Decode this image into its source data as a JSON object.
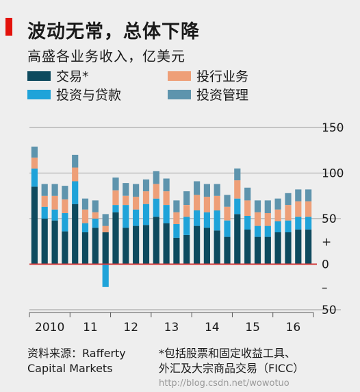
{
  "title": "波动无常，总体下降",
  "subtitle": "高盛各业务收入，亿美元",
  "colors": {
    "accent": "#e3120b",
    "zero_line": "#d33a3a",
    "background": "#eeeeee"
  },
  "footer": {
    "source_line1": "资料来源：Rafferty",
    "source_line2": "Capital Markets",
    "footnote_line1": "*包括股票和固定收益工具、",
    "footnote_line2_text": "外汇及大宗商品交易（FICC）",
    "watermark": "http://blog.csdn.net/wowotuo"
  },
  "chart_data": {
    "type": "bar",
    "stacked": true,
    "ylim": [
      -50,
      150
    ],
    "y_ticks": [
      "150",
      "100",
      "50",
      "+",
      "0",
      "–",
      "50"
    ],
    "x_labels": [
      "2010",
      "11",
      "12",
      "13",
      "14",
      "15",
      "16"
    ],
    "legend": [
      {
        "name": "交易*",
        "color": "#0e4a5e"
      },
      {
        "name": "投行业务",
        "color": "#ee9f78"
      },
      {
        "name": "投资与贷款",
        "color": "#1fa3d9"
      },
      {
        "name": "投资管理",
        "color": "#5e94ad"
      }
    ],
    "grid": true,
    "legend_position": "top-left",
    "periods": [
      "2010 Q1",
      "2010 Q2",
      "2010 Q3",
      "2010 Q4",
      "2011 Q1",
      "2011 Q2",
      "2011 Q3",
      "2011 Q4",
      "2012 Q1",
      "2012 Q2",
      "2012 Q3",
      "2012 Q4",
      "2013 Q1",
      "2013 Q2",
      "2013 Q3",
      "2013 Q4",
      "2014 Q1",
      "2014 Q2",
      "2014 Q3",
      "2014 Q4",
      "2015 Q1",
      "2015 Q2",
      "2015 Q3",
      "2015 Q4",
      "2016 Q1",
      "2016 Q2",
      "2016 Q3",
      "2016 Q4"
    ],
    "series": [
      {
        "name": "交易*",
        "color": "#0e4a5e",
        "values": [
          85,
          50,
          48,
          36,
          66,
          35,
          40,
          35,
          57,
          40,
          42,
          43,
          52,
          45,
          29,
          32,
          42,
          40,
          37,
          30,
          55,
          38,
          30,
          30,
          35,
          35,
          38,
          38
        ]
      },
      {
        "name": "投资与贷款",
        "color": "#1fa3d9",
        "values": [
          20,
          13,
          12,
          20,
          25,
          10,
          10,
          -25,
          8,
          25,
          18,
          23,
          20,
          20,
          15,
          20,
          17,
          17,
          22,
          18,
          17,
          15,
          12,
          12,
          12,
          13,
          14,
          14
        ]
      },
      {
        "name": "投行业务",
        "color": "#ee9f78",
        "values": [
          12,
          12,
          15,
          15,
          15,
          15,
          7,
          7,
          16,
          10,
          14,
          14,
          16,
          15,
          13,
          13,
          17,
          17,
          16,
          15,
          20,
          17,
          15,
          14,
          13,
          17,
          17,
          17
        ]
      },
      {
        "name": "投资管理",
        "color": "#5e94ad",
        "values": [
          12,
          13,
          13,
          15,
          14,
          12,
          13,
          13,
          14,
          14,
          14,
          13,
          14,
          14,
          13,
          15,
          15,
          14,
          13,
          13,
          13,
          14,
          13,
          14,
          12,
          13,
          13,
          13
        ]
      }
    ]
  }
}
